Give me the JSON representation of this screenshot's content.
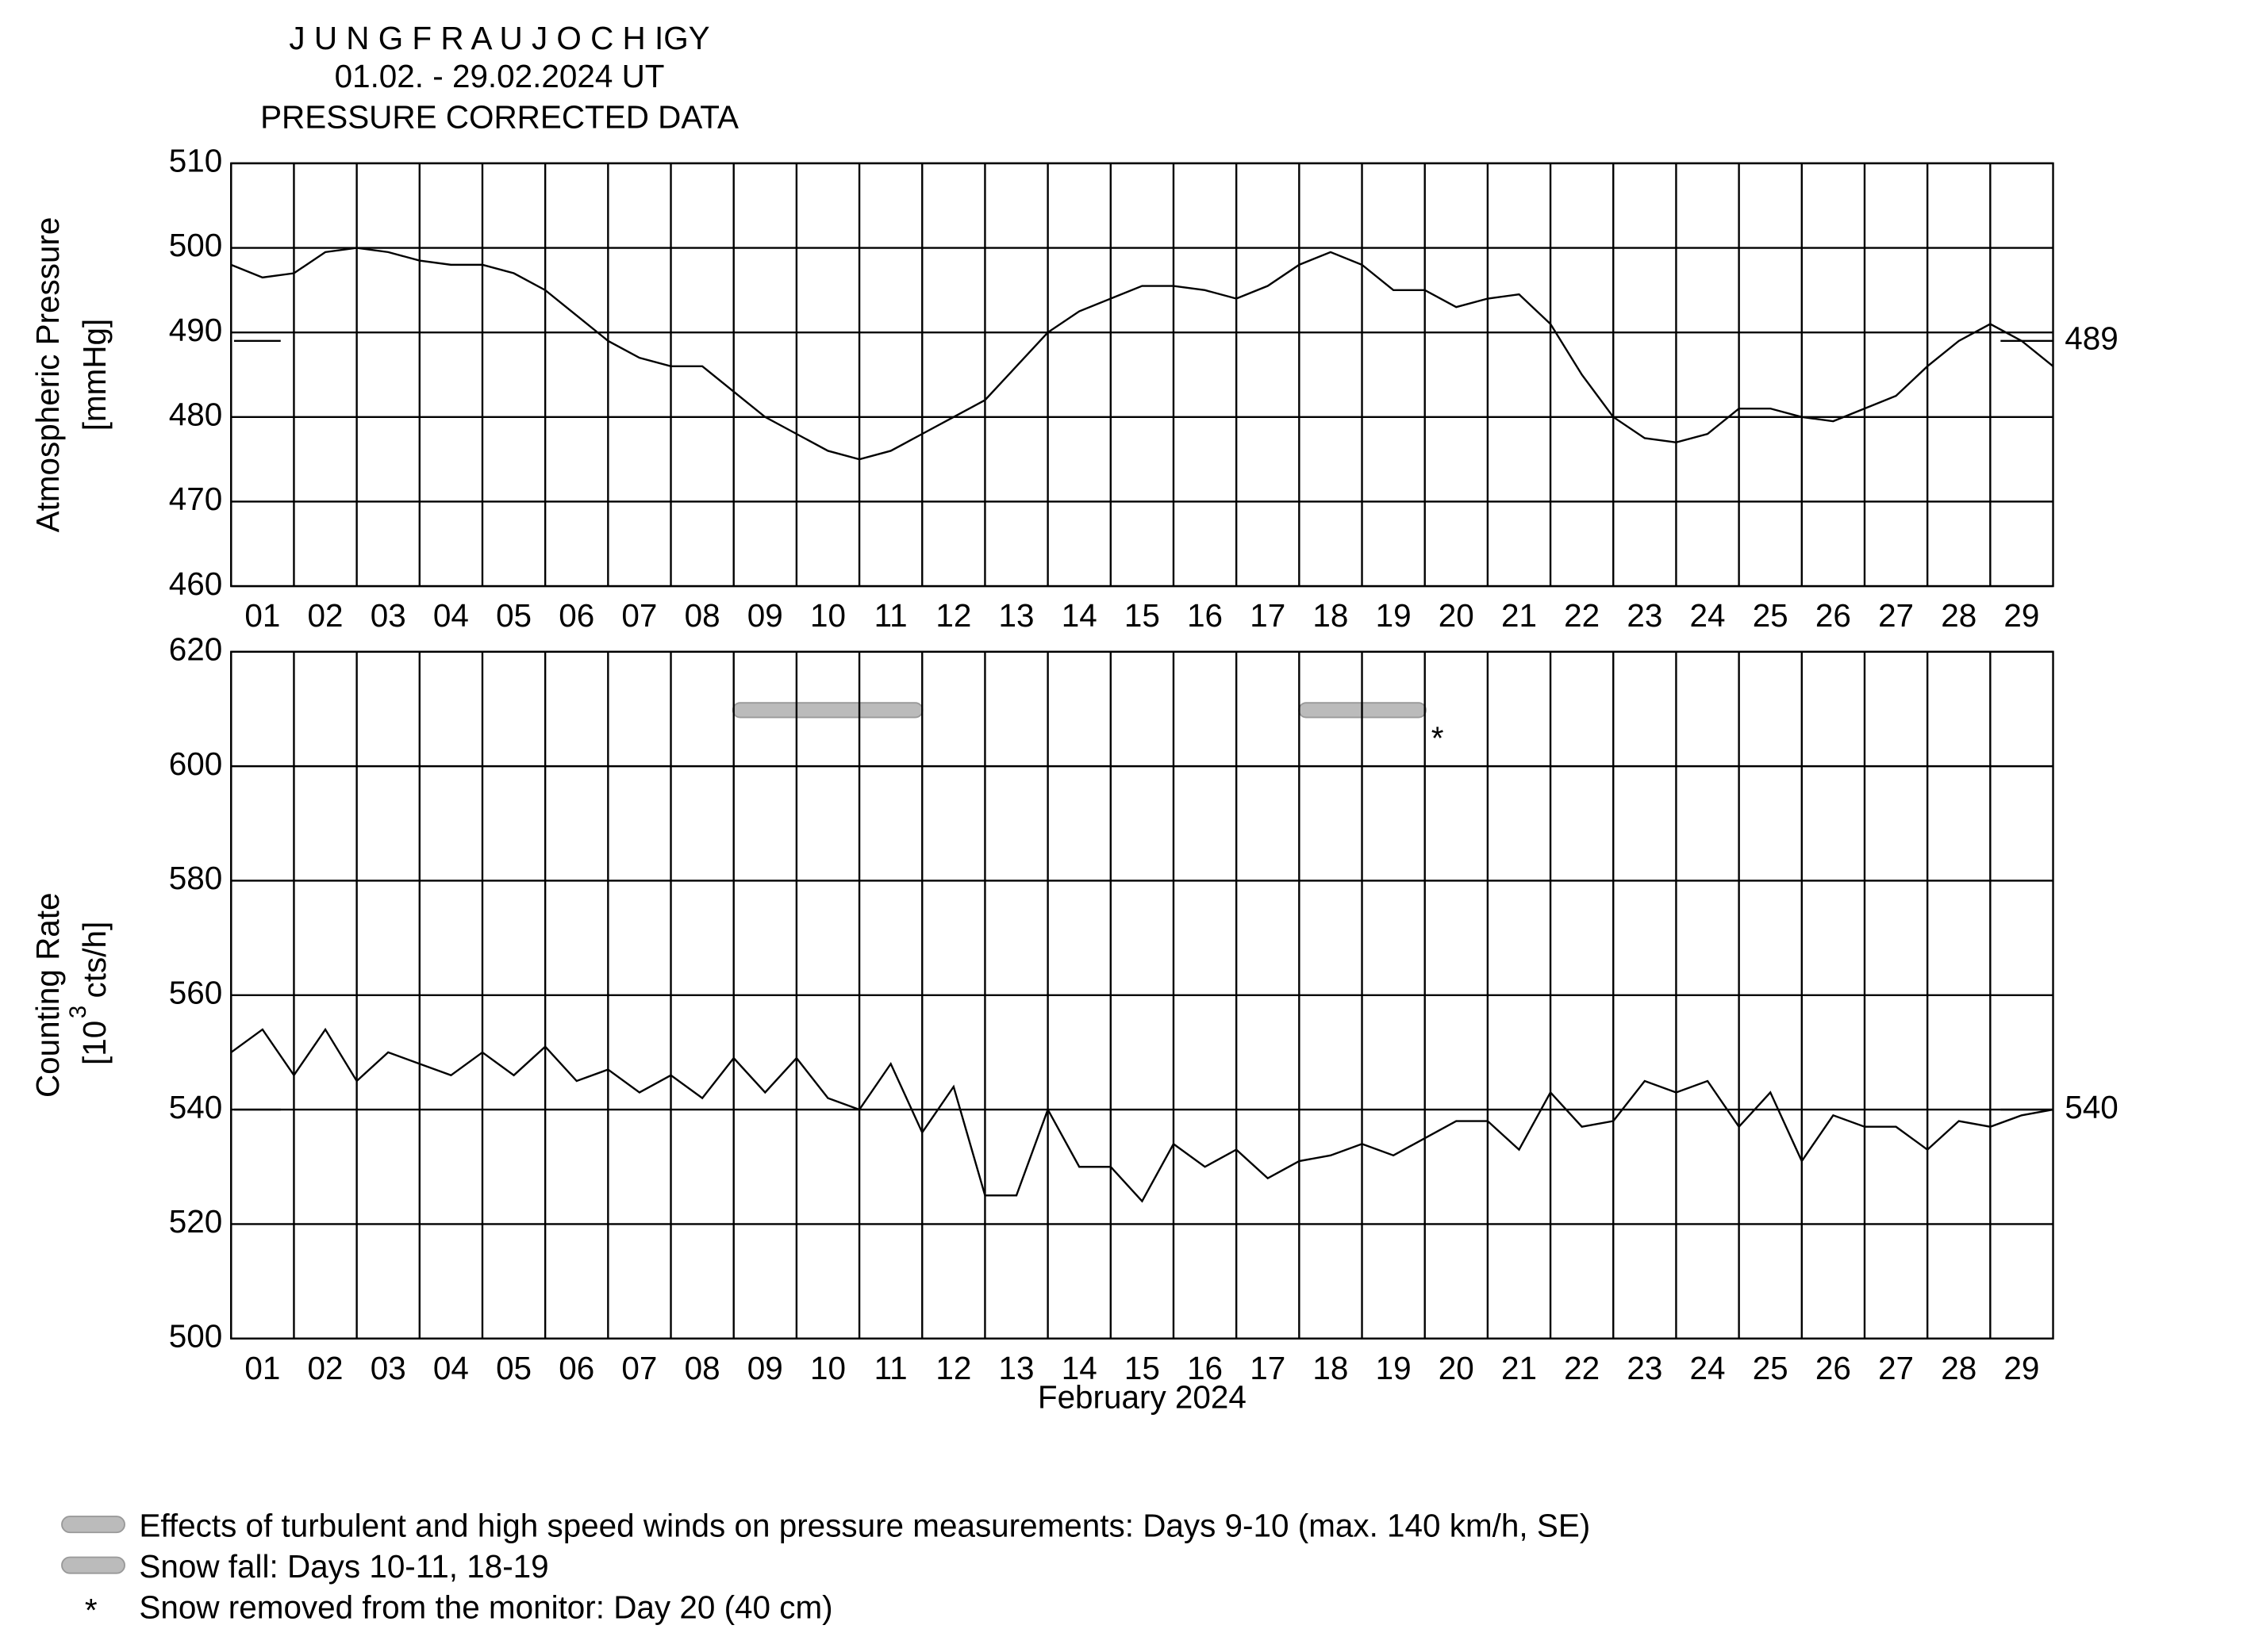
{
  "header": {
    "title": "J U N G F R A U J O C H  IGY",
    "period": "01.02. - 29.02.2024  UT",
    "subtitle": "PRESSURE CORRECTED DATA"
  },
  "chart_data": [
    {
      "type": "line",
      "ylabel": [
        "Atmospheric Pressure",
        "[mmHg]"
      ],
      "x": [
        1,
        1.5,
        2,
        2.5,
        3,
        3.5,
        4,
        4.5,
        5,
        5.5,
        6,
        6.5,
        7,
        7.5,
        8,
        8.5,
        9,
        9.5,
        10,
        10.5,
        11,
        11.5,
        12,
        12.5,
        13,
        13.5,
        14,
        14.5,
        15,
        15.5,
        16,
        16.5,
        17,
        17.5,
        18,
        18.5,
        19,
        19.5,
        20,
        20.5,
        21,
        21.5,
        22,
        22.5,
        23,
        23.5,
        24,
        24.5,
        25,
        25.5,
        26,
        26.5,
        27,
        27.5,
        28,
        28.5,
        29,
        29.5,
        30
      ],
      "series": [
        {
          "name": "Atmospheric Pressure",
          "color": "#000000",
          "values": [
            498,
            496.5,
            497,
            499.5,
            500,
            499.5,
            498.5,
            498,
            498,
            497,
            495,
            492,
            489,
            487,
            486,
            486,
            483,
            480,
            478,
            476,
            475,
            476,
            478,
            480,
            482,
            486,
            490,
            492.5,
            494,
            495.5,
            495.5,
            495,
            494,
            495.5,
            498,
            499.5,
            498,
            495,
            495,
            493,
            494,
            494.5,
            491,
            485,
            480,
            477.5,
            477,
            478,
            481,
            481,
            480,
            479.5,
            481,
            482.5,
            486,
            489,
            491,
            489,
            486
          ]
        }
      ],
      "reference": {
        "value": 489,
        "label": "489"
      },
      "xlim": [
        1,
        30
      ],
      "xticks": [
        {
          "value": 1,
          "label": "01"
        },
        {
          "value": 2,
          "label": "02"
        },
        {
          "value": 3,
          "label": "03"
        },
        {
          "value": 4,
          "label": "04"
        },
        {
          "value": 5,
          "label": "05"
        },
        {
          "value": 6,
          "label": "06"
        },
        {
          "value": 7,
          "label": "07"
        },
        {
          "value": 8,
          "label": "08"
        },
        {
          "value": 9,
          "label": "09"
        },
        10,
        11,
        12,
        13,
        14,
        15,
        16,
        17,
        18,
        19,
        20,
        21,
        22,
        23,
        24,
        25,
        26,
        27,
        28,
        29
      ],
      "ylim": [
        460,
        510
      ],
      "yticks": [
        460,
        470,
        480,
        490,
        500,
        510
      ],
      "grid": true
    },
    {
      "type": "line",
      "ylabel": [
        "Counting Rate",
        "[10",
        "3",
        "cts/h]"
      ],
      "xlabel": "February 2024",
      "x": [
        1,
        1.5,
        2,
        2.5,
        3,
        3.5,
        4,
        4.5,
        5,
        5.5,
        6,
        6.5,
        7,
        7.5,
        8,
        8.5,
        9,
        9.5,
        10,
        10.5,
        11,
        11.5,
        12,
        12.5,
        13,
        13.5,
        14,
        14.5,
        15,
        15.5,
        16,
        16.5,
        17,
        17.5,
        18,
        18.5,
        19,
        19.5,
        20,
        20.5,
        21,
        21.5,
        22,
        22.5,
        23,
        23.5,
        24,
        24.5,
        25,
        25.5,
        26,
        26.5,
        27,
        27.5,
        28,
        28.5,
        29,
        29.5,
        30
      ],
      "series": [
        {
          "name": "Counting Rate",
          "color": "#000000",
          "values": [
            550,
            554,
            546,
            554,
            545,
            550,
            548,
            546,
            550,
            546,
            551,
            545,
            547,
            543,
            546,
            542,
            549,
            543,
            549,
            542,
            540,
            548,
            536,
            544,
            525,
            525,
            540,
            530,
            530,
            524,
            534,
            530,
            533,
            528,
            531,
            532,
            534,
            532,
            535,
            538,
            538,
            533,
            543,
            537,
            538,
            545,
            543,
            545,
            537,
            543,
            531,
            539,
            537,
            537,
            533,
            538,
            537,
            539,
            540
          ]
        }
      ],
      "reference": {
        "value": 540,
        "label": "540"
      },
      "xlim": [
        1,
        30
      ],
      "xticks": [
        {
          "value": 1,
          "label": "01"
        },
        {
          "value": 2,
          "label": "02"
        },
        {
          "value": 3,
          "label": "03"
        },
        {
          "value": 4,
          "label": "04"
        },
        {
          "value": 5,
          "label": "05"
        },
        {
          "value": 6,
          "label": "06"
        },
        {
          "value": 7,
          "label": "07"
        },
        {
          "value": 8,
          "label": "08"
        },
        {
          "value": 9,
          "label": "09"
        },
        10,
        11,
        12,
        13,
        14,
        15,
        16,
        17,
        18,
        19,
        20,
        21,
        22,
        23,
        24,
        25,
        26,
        27,
        28,
        29
      ],
      "ylim": [
        500,
        620
      ],
      "yticks": [
        500,
        520,
        540,
        560,
        580,
        600,
        620
      ],
      "grid": true
    }
  ],
  "legend": [
    "Effects of turbulent and high speed winds on pressure measurements: Days 9-10 (max. 140 km/h, SE)",
    "Snow fall: Days 10-11, 18-19",
    "Snow removed from the monitor: Day 20 (40 cm)"
  ]
}
